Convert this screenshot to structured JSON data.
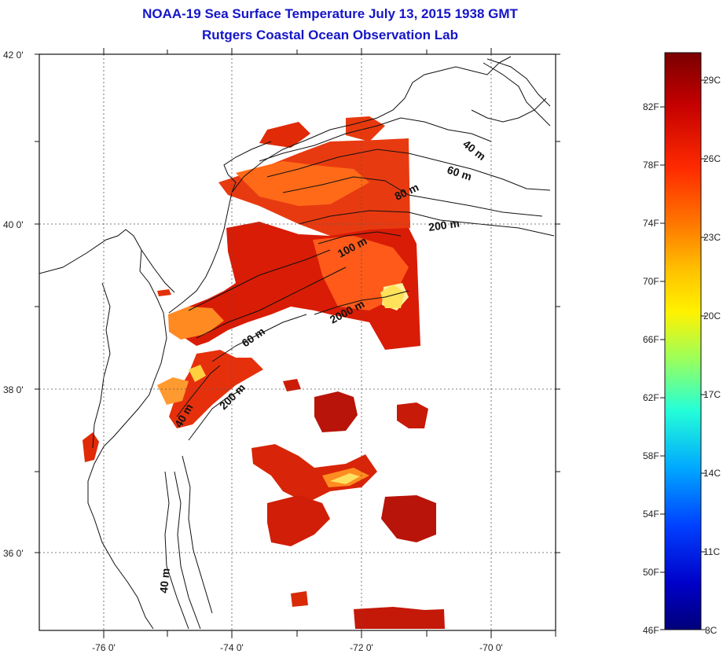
{
  "title": "NOAA-19 Sea Surface Temperature July 13, 2015 1938 GMT",
  "subtitle": "Rutgers Coastal Ocean Observation Lab",
  "axes": {
    "lat_labels": [
      "42 0'",
      "40 0'",
      "38 0'",
      "36 0'"
    ],
    "lon_labels": [
      "-76 0'",
      "-74 0'",
      "-72 0'",
      "-70 0'"
    ]
  },
  "depth_labels": [
    "40 m",
    "60 m",
    "80 m",
    "200 m",
    "100 m",
    "2000 m",
    "60 m",
    "200 m",
    "40 m",
    "40 m"
  ],
  "colorbar": {
    "fahrenheit": [
      "82F",
      "78F",
      "74F",
      "70F",
      "66F",
      "62F",
      "58F",
      "54F",
      "50F",
      "46F"
    ],
    "celsius": [
      "29C",
      "26C",
      "23C",
      "20C",
      "17C",
      "14C",
      "11C",
      "8C"
    ],
    "colors": [
      "#7a0000",
      "#c40000",
      "#ff2a00",
      "#ff7a00",
      "#ffc400",
      "#fff200",
      "#9cff5a",
      "#24ffd8",
      "#00a8ff",
      "#0040ff",
      "#0000c8",
      "#00007a"
    ]
  }
}
